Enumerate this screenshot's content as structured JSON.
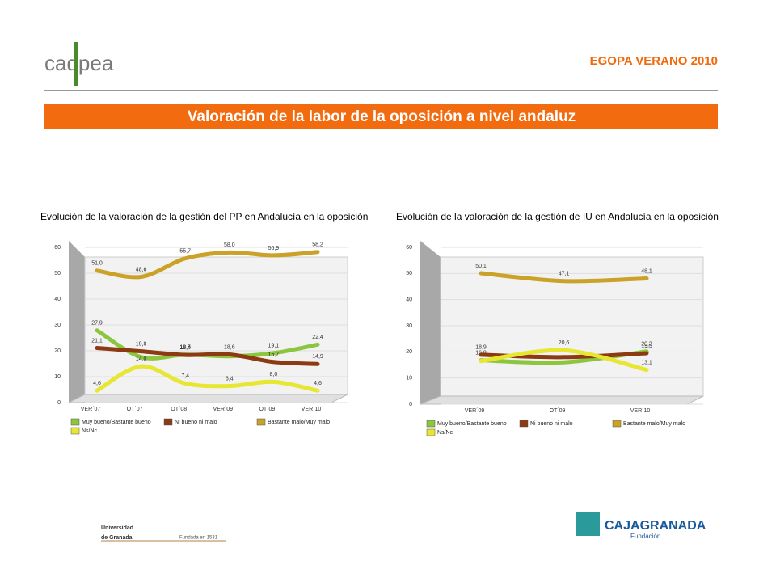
{
  "header": {
    "logo": "cadpea",
    "title": "EGOPA VERANO 2010",
    "banner": "Valoración de la labor de la oposición a nivel andaluz"
  },
  "footer": {
    "university": "Universidad",
    "university2": "de Granada",
    "founded": "Fundada en 1531",
    "bank": "CAJAGRANADA",
    "bank2": "Fundación"
  },
  "chart_data": [
    {
      "type": "line",
      "title": "Evolución de la valoración de la gestión del PP en Andalucía en la oposición",
      "categories": [
        "VER´07",
        "OT´07",
        "OT´08",
        "VER´09",
        "OT´09",
        "VER´10"
      ],
      "ylim": [
        0,
        60
      ],
      "yticks": [
        0,
        10,
        20,
        30,
        40,
        50,
        60
      ],
      "series": [
        {
          "name": "Muy bueno/Bastante bueno",
          "color": "#8cc63f",
          "values": [
            27.9,
            17.6,
            18.5,
            17.9,
            19.1,
            22.4
          ],
          "value_labels": [
            "27,9",
            null,
            "18,5",
            null,
            "19,1",
            "22,4"
          ]
        },
        {
          "name": "Ni bueno ni malo",
          "color": "#8b3a12",
          "values": [
            21.1,
            19.8,
            18.4,
            18.6,
            15.7,
            14.9
          ],
          "value_labels": [
            "21,1",
            "19,8",
            "18,4",
            "18,6",
            "15,7",
            "14,9"
          ]
        },
        {
          "name": "Bastante malo/Muy malo",
          "color": "#c9a227",
          "values": [
            51.0,
            48.6,
            55.7,
            58.0,
            56.9,
            58.2
          ],
          "value_labels": [
            "51,0",
            "48,6",
            "55,7",
            "58,0",
            "56,9",
            "58,2"
          ]
        },
        {
          "name": "Ns/Nc",
          "color": "#e6e633",
          "values": [
            4.6,
            14.0,
            7.4,
            6.4,
            8.0,
            4.6
          ],
          "value_labels": [
            "4,6",
            "14,0",
            "7,4",
            "6,4",
            "8,0",
            "4,6"
          ]
        }
      ]
    },
    {
      "type": "line",
      "title": "Evolución de la valoración de la gestión de IU en Andalucía en la oposición",
      "categories": [
        "VER´09",
        "OT´09",
        "VER´10"
      ],
      "ylim": [
        0,
        60
      ],
      "yticks": [
        0,
        10,
        20,
        30,
        40,
        50,
        60
      ],
      "series": [
        {
          "name": "Muy bueno/Bastante bueno",
          "color": "#8cc63f",
          "values": [
            16.8,
            16.0,
            20.2
          ],
          "value_labels": [
            "16,8",
            null,
            "20,2"
          ]
        },
        {
          "name": "Ni bueno ni malo",
          "color": "#8b3a12",
          "values": [
            18.9,
            18.0,
            19.5
          ],
          "value_labels": [
            "18,9",
            null,
            "19,5"
          ]
        },
        {
          "name": "Bastante malo/Muy malo",
          "color": "#c9a227",
          "values": [
            50.1,
            47.1,
            48.1
          ],
          "value_labels": [
            "50,1",
            "47,1",
            "48,1"
          ]
        },
        {
          "name": "Ns/Nc",
          "color": "#e6e633",
          "values": [
            16.5,
            20.6,
            13.1
          ],
          "value_labels": [
            null,
            "20,6",
            "13,1"
          ]
        }
      ]
    }
  ]
}
